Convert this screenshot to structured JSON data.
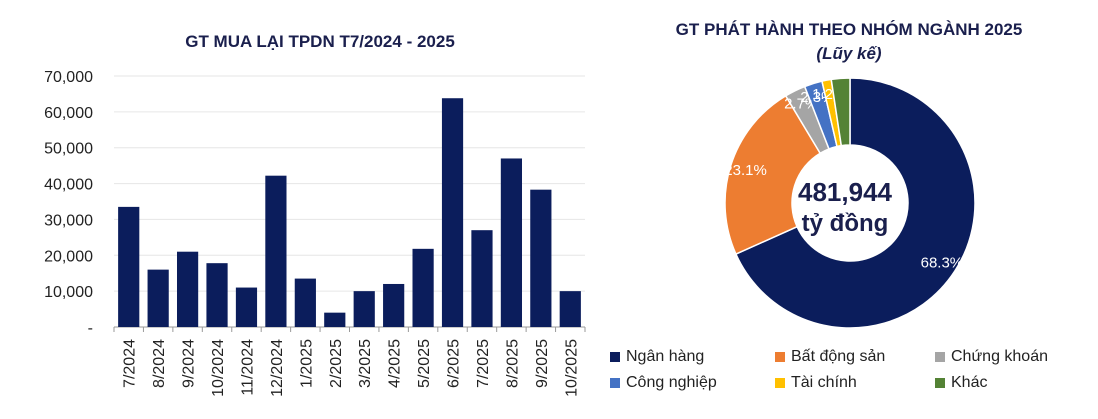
{
  "bar_chart": {
    "title": "GT MUA LẠI TPDN T7/2024 - 2025"
  },
  "pie_chart": {
    "title": "GT PHÁT HÀNH THEO NHÓM NGÀNH 2025",
    "subtitle": "(Lũy kế)",
    "center_value": "481,944",
    "center_unit": "tỷ đồng"
  },
  "chart_data": [
    {
      "type": "bar",
      "title": "GT MUA LẠI TPDN T7/2024 - 2025",
      "categories": [
        "7/2024",
        "8/2024",
        "9/2024",
        "10/2024",
        "11/2024",
        "12/2024",
        "1/2025",
        "2/2025",
        "3/2025",
        "4/2025",
        "5/2025",
        "6/2025",
        "7/2025",
        "8/2025",
        "9/2025",
        "10/2025"
      ],
      "values": [
        33500,
        16000,
        21000,
        17800,
        11000,
        42200,
        13500,
        4000,
        10000,
        12000,
        21800,
        63800,
        27000,
        47000,
        38300,
        10000
      ],
      "ylim": [
        0,
        70000
      ],
      "yticks": [
        "-",
        "10,000",
        "20,000",
        "30,000",
        "40,000",
        "50,000",
        "60,000",
        "70,000"
      ],
      "grid": true,
      "colors": {
        "bar": "#0b1d5c",
        "grid": "#e6e6e6",
        "axis": "#9a9a9a"
      }
    },
    {
      "type": "pie",
      "title": "GT PHÁT HÀNH THEO NHÓM NGÀNH 2025",
      "subtitle": "(Lũy kế)",
      "slices": [
        {
          "name": "Ngân hàng",
          "value": 68.3,
          "label": "68.3%",
          "color": "#0b1d5c"
        },
        {
          "name": "Bất động sản",
          "value": 23.1,
          "label": "23.1%",
          "color": "#ed7d31"
        },
        {
          "name": "Chứng khoán",
          "value": 2.7,
          "label": "2.7%",
          "color": "#a5a5a5"
        },
        {
          "name": "Công nghiệp",
          "value": 2.3,
          "label": "2.3%",
          "color": "#4472c4"
        },
        {
          "name": "Tài chính",
          "value": 1.2,
          "label": "1.2%",
          "color": "#ffc000"
        },
        {
          "name": "Khác",
          "value": 2.4,
          "label": "",
          "color": "#548235"
        }
      ],
      "legend_position": "bottom"
    }
  ]
}
